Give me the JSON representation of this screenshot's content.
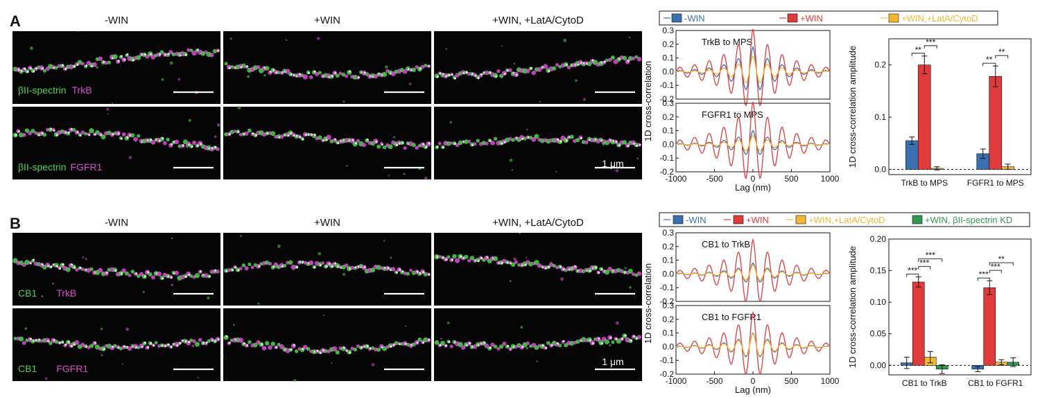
{
  "panel_labels": {
    "a": "A",
    "b": "B"
  },
  "colors": {
    "neg_win": "#3a6fb0",
    "pos_win": "#e03a3a",
    "latcyto": "#f2b731",
    "kd": "#2e9a4c",
    "green": "#4fd24f",
    "magenta": "#d94fd3"
  },
  "panel_a": {
    "column_titles": [
      "-WIN",
      "+WIN",
      "+WIN, +LatA/CytoD"
    ],
    "row_labels": [
      [
        "βII-spectrin",
        "TrkB"
      ],
      [
        "βII-spectrin",
        "FGFR1"
      ]
    ],
    "scale_bar": "1 μm",
    "legend": [
      "-WIN",
      "+WIN",
      "+WIN,+LatA/CytoD"
    ]
  },
  "panel_b": {
    "column_titles": [
      "-WIN",
      "+WIN",
      "+WIN, +LatA/CytoD"
    ],
    "row_labels": [
      [
        "CB1",
        "TrkB"
      ],
      [
        "CB1",
        "FGFR1"
      ]
    ],
    "scale_bar": "1 μm",
    "legend": [
      "-WIN",
      "+WIN",
      "+WIN,+LatA/CytoD",
      "+WIN, βII-spectrin KD"
    ]
  },
  "chart_data": [
    {
      "id": "a_line",
      "type": "line",
      "subplots": [
        "TrkB to MPS",
        "FGFR1 to MPS"
      ],
      "xlabel": "Lag (nm)",
      "ylabel": "1D cross-correlation",
      "xlim": [
        -1000,
        1000
      ],
      "ylim": [
        -0.2,
        0.3
      ],
      "xticks": [
        "-1000",
        "-500",
        "0",
        "500",
        "1000"
      ],
      "yticks": [
        "0.3",
        "0.2",
        "0.1",
        "0.0",
        "-0.1",
        "-0.2"
      ],
      "series": [
        "-WIN",
        "+WIN",
        "+WIN,+LatA/CytoD"
      ],
      "peak": {
        "-WIN": [
          0.18,
          0.1
        ],
        "+WIN": [
          0.31,
          0.31
        ],
        "+WIN,+LatA/CytoD": [
          0.12,
          0.07
        ]
      }
    },
    {
      "id": "a_bar",
      "type": "bar",
      "categories": [
        "TrkB to MPS",
        "FGFR1 to MPS"
      ],
      "ylabel": "1D cross-correlation amplitude",
      "ylim": [
        -0.01,
        0.25
      ],
      "yticks": [
        "0.2",
        "0.1",
        "0.0"
      ],
      "series": [
        {
          "name": "-WIN",
          "values": [
            0.055,
            0.03
          ],
          "errors": [
            0.007,
            0.009
          ]
        },
        {
          "name": "+WIN",
          "values": [
            0.2,
            0.178
          ],
          "errors": [
            0.017,
            0.02
          ]
        },
        {
          "name": "+WIN,+LatA/CytoD",
          "values": [
            0.002,
            0.005
          ],
          "errors": [
            0.003,
            0.005
          ]
        }
      ],
      "significance": [
        {
          "category": 0,
          "pair": [
            0,
            1
          ],
          "label": "**"
        },
        {
          "category": 0,
          "pair": [
            1,
            2
          ],
          "label": "***"
        },
        {
          "category": 1,
          "pair": [
            0,
            1
          ],
          "label": "**"
        },
        {
          "category": 1,
          "pair": [
            1,
            2
          ],
          "label": "**"
        }
      ]
    },
    {
      "id": "b_line",
      "type": "line",
      "subplots": [
        "CB1 to TrkB",
        "CB1 to FGFR1"
      ],
      "xlabel": "Lag (nm)",
      "ylabel": "1D cross-correlation",
      "xlim": [
        -1000,
        1000
      ],
      "ylim": [
        -0.2,
        0.3
      ],
      "xticks": [
        "-1000",
        "-500",
        "0",
        "500",
        "1000"
      ],
      "yticks": [
        "0.3",
        "0.2",
        "0.1",
        "0.0",
        "-0.1",
        "-0.2"
      ],
      "series": [
        "-WIN",
        "+WIN",
        "+WIN,+LatA/CytoD"
      ],
      "peak": {
        "-WIN": [
          0.08,
          0.1
        ],
        "+WIN": [
          0.25,
          0.25
        ],
        "+WIN,+LatA/CytoD": [
          0.07,
          0.1
        ]
      }
    },
    {
      "id": "b_bar",
      "type": "bar",
      "categories": [
        "CB1 to TrkB",
        "CB1 to FGFR1"
      ],
      "ylabel": "1D cross-correlation amplitude",
      "ylim": [
        -0.015,
        0.2
      ],
      "yticks": [
        "0.20",
        "0.15",
        "0.10",
        "0.05",
        "0.00"
      ],
      "series": [
        {
          "name": "-WIN",
          "values": [
            0.004,
            -0.006
          ],
          "errors": [
            0.009,
            0.004
          ]
        },
        {
          "name": "+WIN",
          "values": [
            0.132,
            0.123
          ],
          "errors": [
            0.008,
            0.011
          ]
        },
        {
          "name": "+WIN,+LatA/CytoD",
          "values": [
            0.013,
            0.005
          ],
          "errors": [
            0.009,
            0.004
          ]
        },
        {
          "name": "+WIN, βII-spectrin KD",
          "values": [
            -0.006,
            0.005
          ],
          "errors": [
            0.007,
            0.007
          ]
        }
      ],
      "significance": [
        {
          "category": 0,
          "pair": [
            0,
            1
          ],
          "label": "***"
        },
        {
          "category": 0,
          "pair": [
            1,
            2
          ],
          "label": "***"
        },
        {
          "category": 0,
          "pair": [
            1,
            3
          ],
          "label": "***"
        },
        {
          "category": 1,
          "pair": [
            0,
            1
          ],
          "label": "***"
        },
        {
          "category": 1,
          "pair": [
            1,
            2
          ],
          "label": "***"
        },
        {
          "category": 1,
          "pair": [
            1,
            3
          ],
          "label": "**"
        }
      ]
    }
  ]
}
